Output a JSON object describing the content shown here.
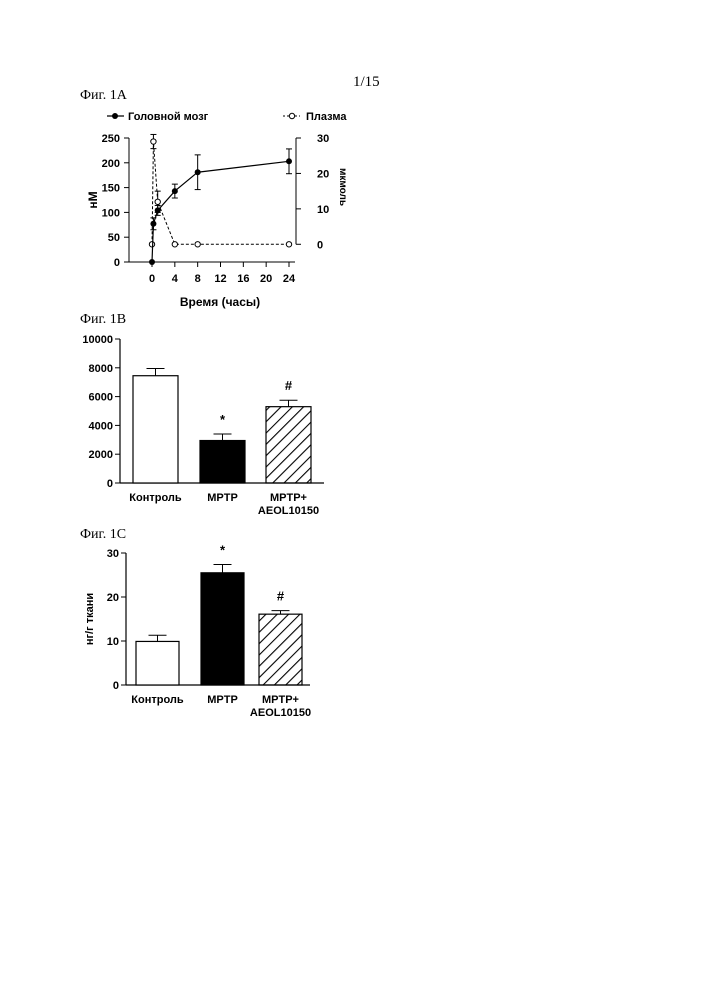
{
  "page": {
    "page_number": "1/15"
  },
  "figures": {
    "a": {
      "label": "Фиг. 1А"
    },
    "b": {
      "label": "Фиг. 1В"
    },
    "c": {
      "label": "Фиг. 1С"
    }
  },
  "chart_data": [
    {
      "type": "line",
      "xlabel": "Время (часы)",
      "ylabel_left": "нМ",
      "ylabel_right": "мкмоль",
      "xlim": [
        0,
        24
      ],
      "xticks": [
        0,
        4,
        8,
        12,
        16,
        20,
        24
      ],
      "ylim_left": [
        0,
        250
      ],
      "yticks_left": [
        0,
        50,
        100,
        150,
        200,
        250
      ],
      "ylim_right": [
        -5,
        30
      ],
      "yticks_right": [
        0,
        10,
        20,
        30
      ],
      "legend_position": "top",
      "series": [
        {
          "name": "Головной мозг",
          "axis": "left",
          "marker": "filled-circle",
          "line": "solid",
          "x": [
            0,
            0.25,
            1,
            4,
            8,
            24
          ],
          "y": [
            0,
            77,
            104,
            143,
            181,
            203
          ],
          "err": [
            0,
            12,
            10,
            14,
            35,
            25
          ]
        },
        {
          "name": "Плазма",
          "axis": "right",
          "marker": "open-circle",
          "line": "dashed",
          "x": [
            0,
            0.25,
            1,
            4,
            8,
            24
          ],
          "y": [
            0,
            29,
            12,
            0,
            0,
            0
          ],
          "err": [
            0,
            2,
            3,
            0,
            0,
            0
          ]
        }
      ]
    },
    {
      "type": "bar",
      "categories": [
        "Контроль",
        "MPTP",
        "MPTP+\nAEOL10150"
      ],
      "category_lines": [
        [
          "Контроль"
        ],
        [
          "MPTP"
        ],
        [
          "MPTP+",
          "AEOL10150"
        ]
      ],
      "values": [
        7450,
        2950,
        5300
      ],
      "errors": [
        500,
        450,
        450
      ],
      "annotations": [
        "",
        "*",
        "#"
      ],
      "fills": [
        "white",
        "black",
        "hatched"
      ],
      "ylim": [
        0,
        10000
      ],
      "yticks": [
        0,
        2000,
        4000,
        6000,
        8000,
        10000
      ]
    },
    {
      "type": "bar",
      "categories": [
        "Контроль",
        "MPTP",
        "MPTP+\nAEOL10150"
      ],
      "category_lines": [
        [
          "Контроль"
        ],
        [
          "MPTP"
        ],
        [
          "MPTP+",
          "AEOL10150"
        ]
      ],
      "ylabel": "нг/г ткани",
      "values": [
        9.9,
        25.5,
        16.1
      ],
      "errors": [
        1.4,
        1.9,
        0.8
      ],
      "annotations": [
        "",
        "*",
        "#"
      ],
      "fills": [
        "white",
        "black",
        "hatched"
      ],
      "ylim": [
        0,
        30
      ],
      "yticks": [
        0,
        10,
        20,
        30
      ]
    }
  ]
}
